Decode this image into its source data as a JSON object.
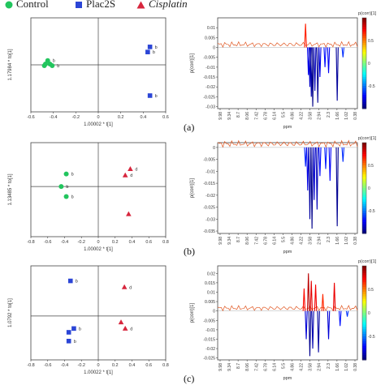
{
  "legend": {
    "items": [
      {
        "label": "Control",
        "color": "#22c55e",
        "shape": "circle"
      },
      {
        "label": "Plac2S",
        "color": "#2b45d6",
        "shape": "square"
      },
      {
        "label": "Cisplatin",
        "color": "#d7263d",
        "shape": "triangle"
      }
    ]
  },
  "panel_labels": [
    "(a)",
    "(b)",
    "(c)"
  ],
  "chart_data": [
    {
      "type": "scatter",
      "panel": "(a)",
      "xlabel": "1.00002 * t[1]",
      "ylabel": "1.17984 * to[1]",
      "xlim": [
        -0.6,
        0.6
      ],
      "xticks": [
        "-0.6",
        "-0.4",
        "-0.2",
        "0",
        "0.2",
        "0.4",
        "0.6"
      ],
      "series": [
        {
          "name": "Control",
          "color": "#22c55e",
          "shape": "circle",
          "points": [
            {
              "x": -0.45,
              "y": 0.05,
              "label": "b"
            },
            {
              "x": -0.47,
              "y": 0.01,
              "label": ""
            },
            {
              "x": -0.43,
              "y": 0.01,
              "label": ""
            },
            {
              "x": -0.41,
              "y": -0.01,
              "label": "b"
            },
            {
              "x": -0.48,
              "y": -0.01,
              "label": ""
            }
          ]
        },
        {
          "name": "Plac2S",
          "color": "#2b45d6",
          "shape": "square",
          "points": [
            {
              "x": 0.46,
              "y": 0.21,
              "label": "b"
            },
            {
              "x": 0.44,
              "y": 0.15,
              "label": "b"
            },
            {
              "x": 0.46,
              "y": -0.36,
              "label": "b"
            }
          ]
        }
      ]
    },
    {
      "type": "line",
      "panel": "(a)",
      "xlabel": "ppm",
      "ylabel": "p(corr)[1]",
      "colorbar_label": "p(corr)[1]",
      "colorbar_ticks": [
        "0.5",
        "0",
        "-0.5"
      ],
      "yticks": [
        "0.01",
        "0.005",
        "0",
        "-0.005",
        "-0.01",
        "-0.015",
        "-0.02",
        "-0.025",
        "-0.03"
      ],
      "ylim": [
        -0.031,
        0.015
      ],
      "xticks": [
        "9.98",
        "9.34",
        "8.7",
        "8.06",
        "7.42",
        "6.78",
        "6.14",
        "5.5",
        "4.86",
        "4.22",
        "3.58",
        "2.94",
        "2.3",
        "1.66",
        "1.02",
        "0.38"
      ],
      "xlim": [
        10.0,
        0.3
      ],
      "peaks": [
        {
          "x": 3.9,
          "y": 0.012
        },
        {
          "x": 3.7,
          "y": -0.014
        },
        {
          "x": 3.6,
          "y": -0.02
        },
        {
          "x": 3.5,
          "y": -0.025
        },
        {
          "x": 3.4,
          "y": -0.03
        },
        {
          "x": 3.25,
          "y": -0.022
        },
        {
          "x": 3.05,
          "y": -0.028
        },
        {
          "x": 2.9,
          "y": -0.015
        },
        {
          "x": 2.55,
          "y": -0.01
        },
        {
          "x": 2.3,
          "y": -0.013
        },
        {
          "x": 1.7,
          "y": -0.027
        },
        {
          "x": 1.3,
          "y": -0.005
        }
      ]
    },
    {
      "type": "scatter",
      "panel": "(b)",
      "xlabel": "1.00002 * t[1]",
      "ylabel": "1.13485 * to[1]",
      "xlim": [
        -0.8,
        0.8
      ],
      "xticks": [
        "-0.8",
        "-0.6",
        "-0.4",
        "-0.2",
        "0",
        "0.2",
        "0.4",
        "0.6",
        "0.8"
      ],
      "series": [
        {
          "name": "Control",
          "color": "#22c55e",
          "shape": "circle",
          "points": [
            {
              "x": -0.38,
              "y": 0.1,
              "label": "b"
            },
            {
              "x": -0.44,
              "y": 0.0,
              "label": "b"
            },
            {
              "x": -0.38,
              "y": -0.08,
              "label": "b"
            }
          ]
        },
        {
          "name": "Cisplatin",
          "color": "#d7263d",
          "shape": "triangle",
          "points": [
            {
              "x": 0.38,
              "y": 0.14,
              "label": "d"
            },
            {
              "x": 0.32,
              "y": 0.09,
              "label": "d"
            },
            {
              "x": 0.36,
              "y": -0.22,
              "label": ""
            }
          ]
        }
      ]
    },
    {
      "type": "line",
      "panel": "(b)",
      "xlabel": "ppm",
      "ylabel": "p(corr)[1]",
      "colorbar_label": "p(corr)[1]",
      "colorbar_ticks": [
        "0.5",
        "0",
        "-0.5"
      ],
      "yticks": [
        "0",
        "-0.005",
        "-0.01",
        "-0.015",
        "-0.02",
        "-0.025",
        "-0.03",
        "-0.035"
      ],
      "ylim": [
        -0.036,
        0.002
      ],
      "xticks": [
        "9.98",
        "9.34",
        "8.7",
        "8.06",
        "7.42",
        "6.78",
        "6.14",
        "5.5",
        "4.86",
        "4.22",
        "3.58",
        "2.94",
        "2.3",
        "1.66",
        "1.02",
        "0.38"
      ],
      "xlim": [
        10.0,
        0.3
      ],
      "peaks": [
        {
          "x": 3.9,
          "y": -0.008
        },
        {
          "x": 3.75,
          "y": -0.018
        },
        {
          "x": 3.6,
          "y": -0.03
        },
        {
          "x": 3.45,
          "y": -0.034
        },
        {
          "x": 3.3,
          "y": -0.022
        },
        {
          "x": 3.1,
          "y": -0.026
        },
        {
          "x": 2.9,
          "y": -0.012
        },
        {
          "x": 2.5,
          "y": -0.009
        },
        {
          "x": 2.2,
          "y": -0.014
        },
        {
          "x": 1.7,
          "y": -0.033
        },
        {
          "x": 1.3,
          "y": -0.006
        }
      ]
    },
    {
      "type": "scatter",
      "panel": "(c)",
      "xlabel": "1.00022 * t[1]",
      "ylabel": "1.0792 * to[1]",
      "xlim": [
        -0.8,
        0.8
      ],
      "xticks": [
        "-0.8",
        "-0.6",
        "-0.4",
        "-0.2",
        "0",
        "0.2",
        "0.4",
        "0.6",
        "0.8"
      ],
      "series": [
        {
          "name": "Plac2S",
          "color": "#2b45d6",
          "shape": "square",
          "points": [
            {
              "x": -0.33,
              "y": 0.28,
              "label": "b"
            },
            {
              "x": -0.29,
              "y": -0.1,
              "label": "b"
            },
            {
              "x": -0.35,
              "y": -0.13,
              "label": ""
            },
            {
              "x": -0.35,
              "y": -0.2,
              "label": "b"
            }
          ]
        },
        {
          "name": "Cisplatin",
          "color": "#d7263d",
          "shape": "triangle",
          "points": [
            {
              "x": 0.31,
              "y": 0.23,
              "label": "d"
            },
            {
              "x": 0.27,
              "y": -0.05,
              "label": ""
            },
            {
              "x": 0.32,
              "y": -0.1,
              "label": "d"
            }
          ]
        }
      ]
    },
    {
      "type": "line",
      "panel": "(c)",
      "xlabel": "ppm",
      "ylabel": "p(corr)[1]",
      "colorbar_label": "p(corr)[1]",
      "colorbar_ticks": [
        "0.5",
        "0",
        "-0.5"
      ],
      "yticks": [
        "0.02",
        "0.015",
        "0.01",
        "0.005",
        "0",
        "-0.005",
        "-0.01",
        "-0.015",
        "-0.02",
        "-0.025"
      ],
      "ylim": [
        -0.026,
        0.024
      ],
      "xticks": [
        "9.98",
        "9.34",
        "8.7",
        "8.06",
        "7.42",
        "6.78",
        "6.14",
        "5.5",
        "4.86",
        "4.22",
        "3.58",
        "2.94",
        "2.3",
        "1.66",
        "1.02",
        "0.38"
      ],
      "xlim": [
        10.0,
        0.3
      ],
      "peaks": [
        {
          "x": 4.0,
          "y": 0.012
        },
        {
          "x": 3.85,
          "y": -0.015
        },
        {
          "x": 3.7,
          "y": 0.02
        },
        {
          "x": 3.6,
          "y": -0.024
        },
        {
          "x": 3.5,
          "y": 0.016
        },
        {
          "x": 3.4,
          "y": -0.02
        },
        {
          "x": 3.2,
          "y": 0.014
        },
        {
          "x": 3.0,
          "y": -0.022
        },
        {
          "x": 2.7,
          "y": 0.009
        },
        {
          "x": 2.3,
          "y": -0.015
        },
        {
          "x": 1.9,
          "y": 0.015
        },
        {
          "x": 1.5,
          "y": -0.008
        },
        {
          "x": 1.0,
          "y": -0.003
        }
      ]
    }
  ]
}
